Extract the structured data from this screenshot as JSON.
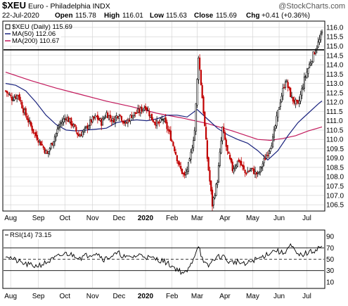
{
  "header": {
    "symbol": "$XEU",
    "name": "Euro - Philadelphia INDX",
    "watermark": "@StockCharts.com",
    "date": "22-Jul-2020",
    "open_label": "Open",
    "open": "115.78",
    "high_label": "High",
    "high": "116.01",
    "low_label": "Low",
    "low": "115.63",
    "close_label": "Close",
    "close": "115.69",
    "chg_label": "Chg",
    "chg": "+0.41 (+0.36%)"
  },
  "legend": {
    "price": "$XEU (Daily) 115.69",
    "ma50": "MA(50) 112.06",
    "ma200": "MA(200) 110.67"
  },
  "rsi_legend": "RSI(14) 73.15",
  "colors": {
    "candle_up": "#000000",
    "candle_down": "#c00000",
    "ma50": "#1a237e",
    "ma200": "#c2185b",
    "rsi": "#000000",
    "hline": "#000000",
    "grid": "#cfcfcf",
    "legend_box": "#ffffff"
  },
  "chart_data": [
    {
      "type": "candlestick",
      "title": "$XEU (Daily) 115.69",
      "y_ticks": [
        106.5,
        107.0,
        107.5,
        108.0,
        108.5,
        109.0,
        109.5,
        110.0,
        110.5,
        111.0,
        111.5,
        112.0,
        112.5,
        113.0,
        113.5,
        114.0,
        114.5,
        115.0,
        115.5,
        116.0
      ],
      "ylim": [
        106.2,
        116.3
      ],
      "x_labels": [
        "Aug",
        "Sep",
        "Oct",
        "Nov",
        "Dec",
        "2020",
        "Feb",
        "Mar",
        "Apr",
        "May",
        "Jun",
        "Jul"
      ],
      "horizontal_line": 114.8,
      "series": [
        {
          "name": "MA(50)",
          "x": [
            0,
            8,
            16,
            24,
            32,
            40,
            48,
            56,
            64,
            72,
            80,
            88,
            96,
            104,
            112,
            120,
            128,
            136,
            144,
            152,
            160,
            168,
            176,
            184,
            192,
            200,
            208,
            216,
            224,
            232,
            240,
            248,
            251
          ],
          "values": [
            113.0,
            112.9,
            112.6,
            112.0,
            111.3,
            110.8,
            110.5,
            110.45,
            110.5,
            110.55,
            110.6,
            110.9,
            111.0,
            111.05,
            111.0,
            111.1,
            111.3,
            111.3,
            111.2,
            111.6,
            111.1,
            110.6,
            110.25,
            110.0,
            109.8,
            109.4,
            108.9,
            109.4,
            110.2,
            110.9,
            111.4,
            111.9,
            112.06
          ]
        },
        {
          "name": "MA(200)",
          "x": [
            0,
            20,
            40,
            60,
            80,
            100,
            120,
            140,
            160,
            180,
            200,
            210,
            220,
            230,
            240,
            251
          ],
          "values": [
            113.6,
            113.15,
            112.75,
            112.4,
            112.05,
            111.75,
            111.4,
            111.15,
            110.85,
            110.45,
            110.0,
            109.95,
            110.05,
            110.2,
            110.45,
            110.67
          ]
        }
      ],
      "price_path": {
        "x": [
          0,
          5,
          10,
          14,
          18,
          23,
          28,
          33,
          38,
          43,
          48,
          53,
          58,
          63,
          68,
          72,
          76,
          80,
          85,
          90,
          95,
          100,
          106,
          111,
          116,
          121,
          125,
          130,
          134,
          138,
          142,
          146,
          150,
          153,
          157,
          160,
          164,
          168,
          172,
          176,
          180,
          185,
          190,
          195,
          200,
          206,
          212,
          217,
          222,
          227,
          232,
          237,
          241,
          245,
          249,
          251
        ],
        "close": [
          112.6,
          112.2,
          112.4,
          111.6,
          111.0,
          110.3,
          109.8,
          109.2,
          110.0,
          110.8,
          111.2,
          110.8,
          110.2,
          110.5,
          111.0,
          111.2,
          110.9,
          111.4,
          111.0,
          111.4,
          110.8,
          111.3,
          111.5,
          111.8,
          111.1,
          110.8,
          111.1,
          110.3,
          109.5,
          108.5,
          108.0,
          108.8,
          110.5,
          114.5,
          111.5,
          109.0,
          106.5,
          107.8,
          110.6,
          109.3,
          108.4,
          108.9,
          108.2,
          108.4,
          108.1,
          109.0,
          110.0,
          111.8,
          113.2,
          112.2,
          111.8,
          113.2,
          114.0,
          114.7,
          115.3,
          115.7
        ]
      }
    },
    {
      "type": "line",
      "title": "RSI(14) 73.15",
      "y_ticks": [
        10,
        30,
        50,
        70,
        90
      ],
      "ylim": [
        0,
        100
      ],
      "reference_lines": [
        70,
        50,
        30
      ],
      "x": [
        0,
        6,
        12,
        18,
        24,
        30,
        36,
        42,
        48,
        54,
        60,
        66,
        72,
        78,
        84,
        90,
        96,
        102,
        108,
        114,
        120,
        126,
        132,
        138,
        142,
        146,
        150,
        153,
        157,
        161,
        166,
        172,
        178,
        184,
        190,
        196,
        202,
        208,
        214,
        220,
        226,
        232,
        238,
        244,
        248,
        251
      ],
      "values": [
        58,
        50,
        44,
        40,
        38,
        42,
        48,
        55,
        60,
        57,
        53,
        58,
        62,
        50,
        56,
        60,
        52,
        55,
        58,
        52,
        50,
        46,
        38,
        30,
        24,
        35,
        58,
        76,
        42,
        38,
        52,
        56,
        44,
        46,
        40,
        48,
        52,
        60,
        66,
        60,
        74,
        56,
        60,
        64,
        70,
        73
      ]
    }
  ]
}
